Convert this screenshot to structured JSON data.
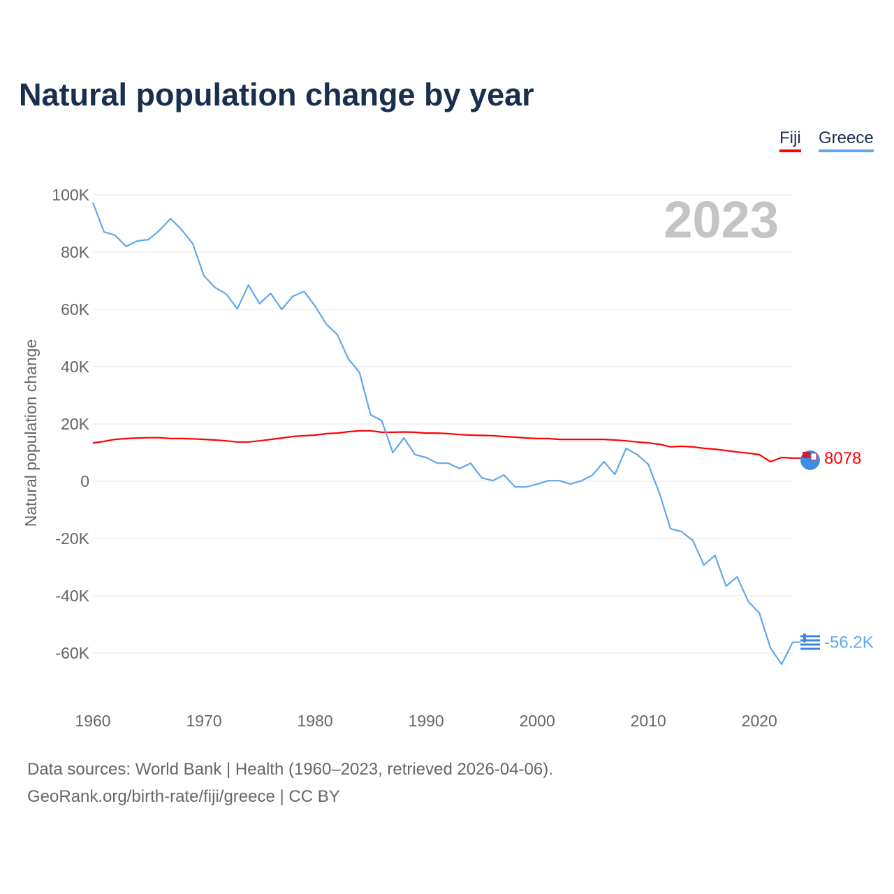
{
  "title": "Natural population change by year",
  "legend": [
    {
      "name": "Fiji",
      "color": "#ff0000"
    },
    {
      "name": "Greece",
      "color": "#5fa8ec"
    }
  ],
  "year_badge": "2023",
  "footer": {
    "line1": "Data sources: World Bank | Health (1960–2023, retrieved 2026-04-06).",
    "line2": "GeoRank.org/birth-rate/fiji/greece | CC BY"
  },
  "chart_data": {
    "type": "line",
    "title": "Natural population change by year",
    "xlabel": "",
    "ylabel": "Natural population change",
    "xlim": [
      1960,
      2023
    ],
    "ylim": [
      -70000,
      100000
    ],
    "x_ticks": [
      1960,
      1970,
      1980,
      1990,
      2000,
      2010,
      2020
    ],
    "x_tick_labels": [
      "1960",
      "1970",
      "1980",
      "1990",
      "2000",
      "2010",
      "2020"
    ],
    "y_ticks": [
      100000,
      80000,
      60000,
      40000,
      20000,
      0,
      -20000,
      -40000,
      -60000
    ],
    "y_tick_labels": [
      "100K",
      "80K",
      "60K",
      "40K",
      "20K",
      "0",
      "-20K",
      "-40K",
      "-60K"
    ],
    "grid": true,
    "legend_position": "top-right",
    "x": [
      1960,
      1961,
      1962,
      1963,
      1964,
      1965,
      1966,
      1967,
      1968,
      1969,
      1970,
      1971,
      1972,
      1973,
      1974,
      1975,
      1976,
      1977,
      1978,
      1979,
      1980,
      1981,
      1982,
      1983,
      1984,
      1985,
      1986,
      1987,
      1988,
      1989,
      1990,
      1991,
      1992,
      1993,
      1994,
      1995,
      1996,
      1997,
      1998,
      1999,
      2000,
      2001,
      2002,
      2003,
      2004,
      2005,
      2006,
      2007,
      2008,
      2009,
      2010,
      2011,
      2012,
      2013,
      2014,
      2015,
      2016,
      2017,
      2018,
      2019,
      2020,
      2021,
      2022,
      2023
    ],
    "series": [
      {
        "name": "Fiji",
        "color": "#ff0000",
        "end_label": "8078",
        "values": [
          13400,
          13900,
          14600,
          14900,
          15100,
          15200,
          15200,
          14900,
          14900,
          14800,
          14600,
          14400,
          14100,
          13700,
          13700,
          14100,
          14600,
          15100,
          15600,
          15900,
          16100,
          16600,
          16800,
          17300,
          17600,
          17600,
          17100,
          17100,
          17200,
          17100,
          16800,
          16800,
          16600,
          16300,
          16100,
          16000,
          15900,
          15600,
          15400,
          15100,
          14900,
          14900,
          14600,
          14600,
          14600,
          14600,
          14600,
          14400,
          14100,
          13700,
          13400,
          12900,
          12000,
          12200,
          12000,
          11500,
          11200,
          10700,
          10200,
          9800,
          9300,
          6800,
          8300,
          8078
        ]
      },
      {
        "name": "Greece",
        "color": "#5fa8ec",
        "end_label": "-56.2K",
        "values": [
          97300,
          87100,
          85900,
          82000,
          83900,
          84400,
          87600,
          91700,
          87800,
          82900,
          71700,
          67600,
          65400,
          60200,
          68500,
          62000,
          65600,
          60000,
          64600,
          66300,
          61200,
          54900,
          51200,
          42700,
          38000,
          23200,
          21200,
          10000,
          15100,
          9300,
          8300,
          6300,
          6300,
          4400,
          6300,
          1200,
          200,
          2200,
          -2000,
          -2000,
          -1000,
          200,
          200,
          -1000,
          200,
          2200,
          6800,
          2400,
          11500,
          9300,
          5900,
          -4100,
          -16600,
          -17600,
          -20700,
          -29300,
          -25900,
          -36600,
          -33400,
          -42000,
          -46100,
          -58300,
          -63900,
          -56200
        ]
      }
    ]
  }
}
